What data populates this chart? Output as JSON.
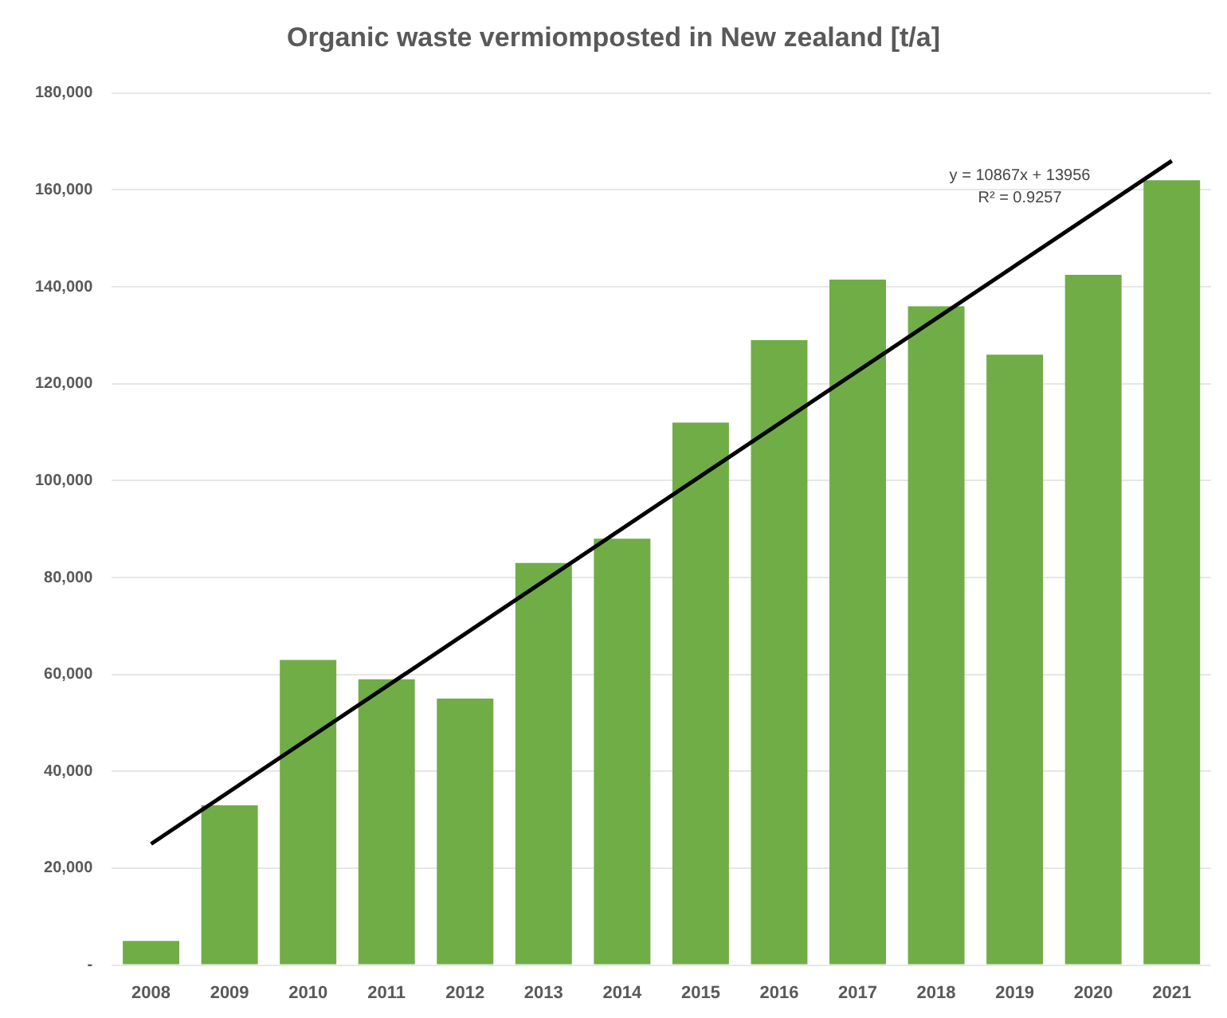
{
  "chart_data": {
    "type": "bar",
    "title": "Organic waste vermiomposted in New zealand [t/a]",
    "categories": [
      "2008",
      "2009",
      "2010",
      "2011",
      "2012",
      "2013",
      "2014",
      "2015",
      "2016",
      "2017",
      "2018",
      "2019",
      "2020",
      "2021"
    ],
    "series": [
      {
        "color": "#70ad47",
        "values": [
          5000,
          33000,
          63000,
          59000,
          55000,
          83000,
          88000,
          112000,
          129000,
          141500,
          136000,
          126000,
          142500,
          162000
        ]
      },
      {
        "type": "line",
        "color": "#000000",
        "values": [
          25000,
          null,
          null,
          null,
          null,
          null,
          null,
          null,
          null,
          null,
          null,
          null,
          null,
          166000
        ]
      }
    ],
    "ylim": [
      0,
      180000
    ],
    "yticks": [
      {
        "value": 0,
        "label": "-"
      },
      {
        "value": 20000,
        "label": "20,000"
      },
      {
        "value": 40000,
        "label": "40,000"
      },
      {
        "value": 60000,
        "label": "60,000"
      },
      {
        "value": 80000,
        "label": "80,000"
      },
      {
        "value": 100000,
        "label": "100,000"
      },
      {
        "value": 120000,
        "label": "120,000"
      },
      {
        "value": 140000,
        "label": "140,000"
      },
      {
        "value": 160000,
        "label": "160,000"
      },
      {
        "value": 180000,
        "label": "180,000"
      }
    ],
    "grid": "y",
    "annotations": [
      "y = 10867x + 13956",
      "R² = 0.9257"
    ]
  }
}
